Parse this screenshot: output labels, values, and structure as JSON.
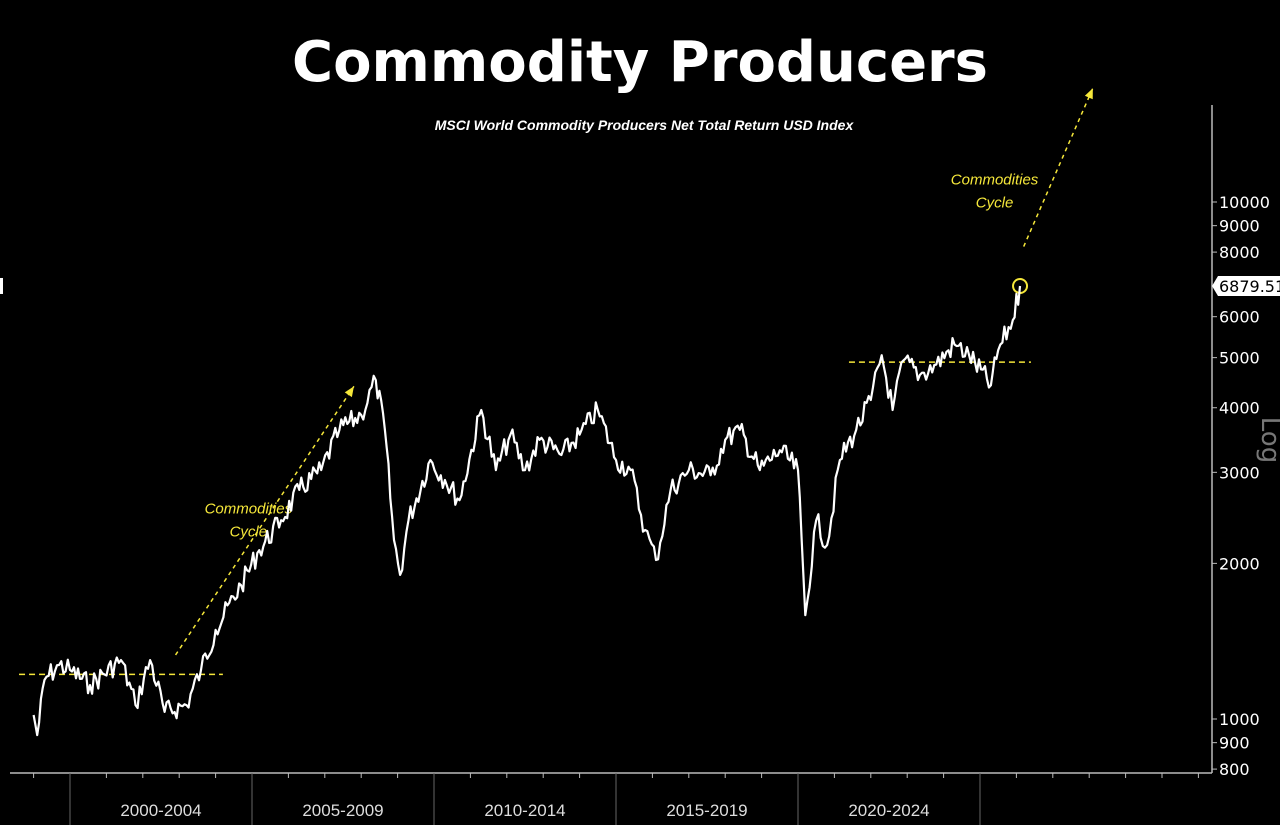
{
  "title": "Commodity Producers",
  "chart_data": {
    "type": "line",
    "title": "Commodity Producers",
    "subtitle": "MSCI World Commodity Producers Net Total Return USD Index",
    "y_scale": "log",
    "y_scale_label": "Log",
    "ylim": [
      780,
      14000
    ],
    "y_ticks": [
      800,
      900,
      1000,
      2000,
      3000,
      4000,
      5000,
      6000,
      8000,
      9000,
      10000
    ],
    "x_period_labels": [
      "2000-2004",
      "2005-2009",
      "2010-2014",
      "2015-2019",
      "2020-2024"
    ],
    "x_period_starts": [
      2000,
      2005,
      2010,
      2015,
      2020,
      2025
    ],
    "xlim": [
      1998.4,
      2031.3
    ],
    "last_value_label": "6879.51",
    "line_color": "#ffffff",
    "annotation_color": "#f5e73a",
    "series": [
      {
        "x": [
          1999.0,
          1999.1,
          1999.3,
          1999.7,
          2000.0,
          2000.55,
          2001.4,
          2001.8,
          2002.2,
          2002.6,
          2003.2,
          2003.6,
          2004.0,
          2004.7,
          2005.2,
          2005.8,
          2006.3,
          2006.9,
          2007.4,
          2008.0,
          2008.4,
          2008.65,
          2008.9,
          2009.07,
          2009.3,
          2009.9,
          2010.3,
          2010.7,
          2011.3,
          2011.7,
          2012.1,
          2012.5,
          2012.9,
          2013.5,
          2014.0,
          2014.5,
          2015.0,
          2015.4,
          2015.8,
          2016.1,
          2016.5,
          2017.0,
          2017.6,
          2018.0,
          2018.4,
          2018.95,
          2019.5,
          2020.0,
          2020.2,
          2020.5,
          2020.8,
          2021.15,
          2021.6,
          2022.0,
          2022.3,
          2022.6,
          2022.9,
          2023.35,
          2023.8,
          2024.3,
          2024.7,
          2025.3,
          2025.5,
          2025.9,
          2026.1
        ],
        "y": [
          1018,
          931,
          1190,
          1272,
          1244,
          1163,
          1300,
          1064,
          1300,
          1032,
          1064,
          1244,
          1487,
          1815,
          2122,
          2424,
          2774,
          3030,
          3624,
          3872,
          4524,
          3624,
          2218,
          1900,
          2424,
          3170,
          2899,
          2650,
          3960,
          3030,
          3548,
          3030,
          3467,
          3240,
          3548,
          3960,
          3170,
          3030,
          2320,
          2030,
          2774,
          3030,
          2960,
          3467,
          3624,
          3030,
          3310,
          3030,
          1588,
          2424,
          2170,
          3170,
          3624,
          4140,
          5055,
          3960,
          4940,
          4630,
          4850,
          5300,
          5055,
          4420,
          5170,
          5910,
          6879.51
        ]
      }
    ],
    "annotations": [
      {
        "type": "label",
        "text_lines": [
          "Commodities",
          "Cycle"
        ],
        "near_x": 2004.9,
        "near_y": 2500
      },
      {
        "type": "label",
        "text_lines": [
          "Commodities",
          "Cycle"
        ],
        "near_x": 2025.4,
        "near_y": 10800
      },
      {
        "type": "hline",
        "y": 1220,
        "x_from": 1998.6,
        "x_to": 2004.2,
        "style": "dashed"
      },
      {
        "type": "hline",
        "y": 4900,
        "x_from": 2021.4,
        "x_to": 2026.4,
        "style": "dashed"
      },
      {
        "type": "arrow",
        "from": [
          2002.9,
          1330
        ],
        "to": [
          2007.8,
          4400
        ],
        "style": "dashed"
      },
      {
        "type": "arrow",
        "from": [
          2026.2,
          8200
        ],
        "to": [
          2028.1,
          16600
        ],
        "style": "dashed"
      },
      {
        "type": "circle",
        "x": 2026.1,
        "y": 6879.51
      }
    ]
  }
}
